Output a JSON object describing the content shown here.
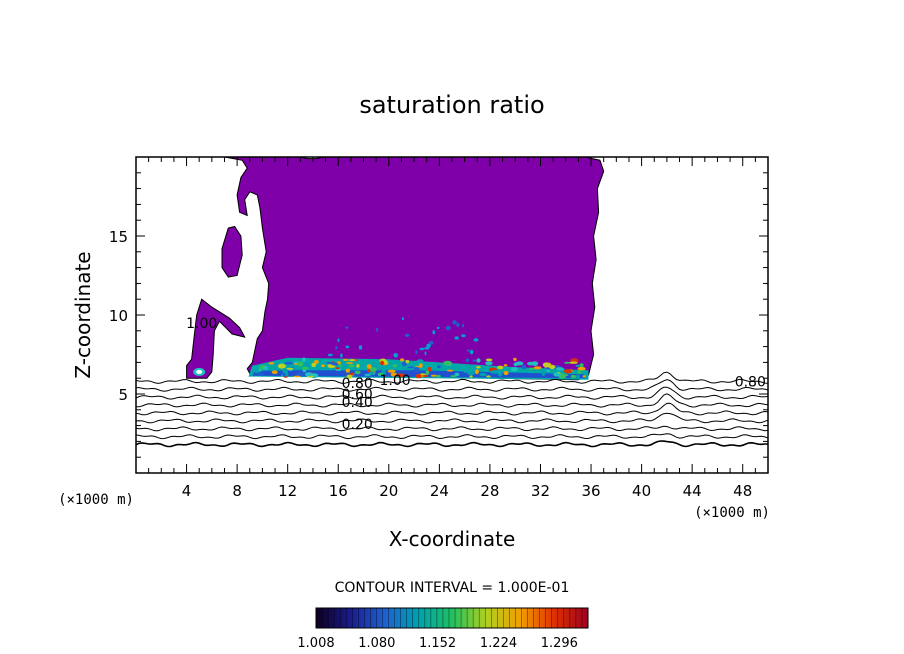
{
  "chart_data": {
    "type": "contour",
    "title": "saturation ratio",
    "xlabel": "X-coordinate",
    "ylabel": "Z-coordinate",
    "x_unit": "(×1000 m)",
    "y_unit": "(×1000 m)",
    "xlim": [
      0,
      50
    ],
    "ylim": [
      0,
      20
    ],
    "x_ticks": [
      4,
      8,
      12,
      16,
      20,
      24,
      28,
      32,
      36,
      40,
      44,
      48
    ],
    "y_ticks": [
      5,
      10,
      15
    ],
    "contour_interval_text": "CONTOUR INTERVAL = 1.000E-01",
    "contour_labels": [
      {
        "text": "0.20",
        "x": 17.5,
        "z": 3.1
      },
      {
        "text": "0.40",
        "x": 17.5,
        "z": 4.5
      },
      {
        "text": "0.60",
        "x": 17.5,
        "z": 5.0
      },
      {
        "text": "0.80",
        "x": 17.5,
        "z": 5.7
      },
      {
        "text": "1.00",
        "x": 20.5,
        "z": 5.9
      },
      {
        "text": "0.80",
        "x": 48.6,
        "z": 5.8
      },
      {
        "text": "1.00",
        "x": 5.2,
        "z": 9.5
      }
    ],
    "colorbar": {
      "min": 1.008,
      "max": 1.33,
      "tick_labels": [
        "1.008",
        "1.080",
        "1.152",
        "1.224",
        "1.296"
      ],
      "colors": [
        "#0f0020",
        "#1a1a8a",
        "#1f5fd0",
        "#00a0b0",
        "#20c060",
        "#b0d020",
        "#f0a000",
        "#e03000",
        "#a00020"
      ]
    },
    "fill_color": "#7f00a8",
    "line_contour_levels": [
      0.2,
      0.3,
      0.4,
      0.5,
      0.6,
      0.7,
      0.8,
      0.9,
      1.0
    ]
  }
}
